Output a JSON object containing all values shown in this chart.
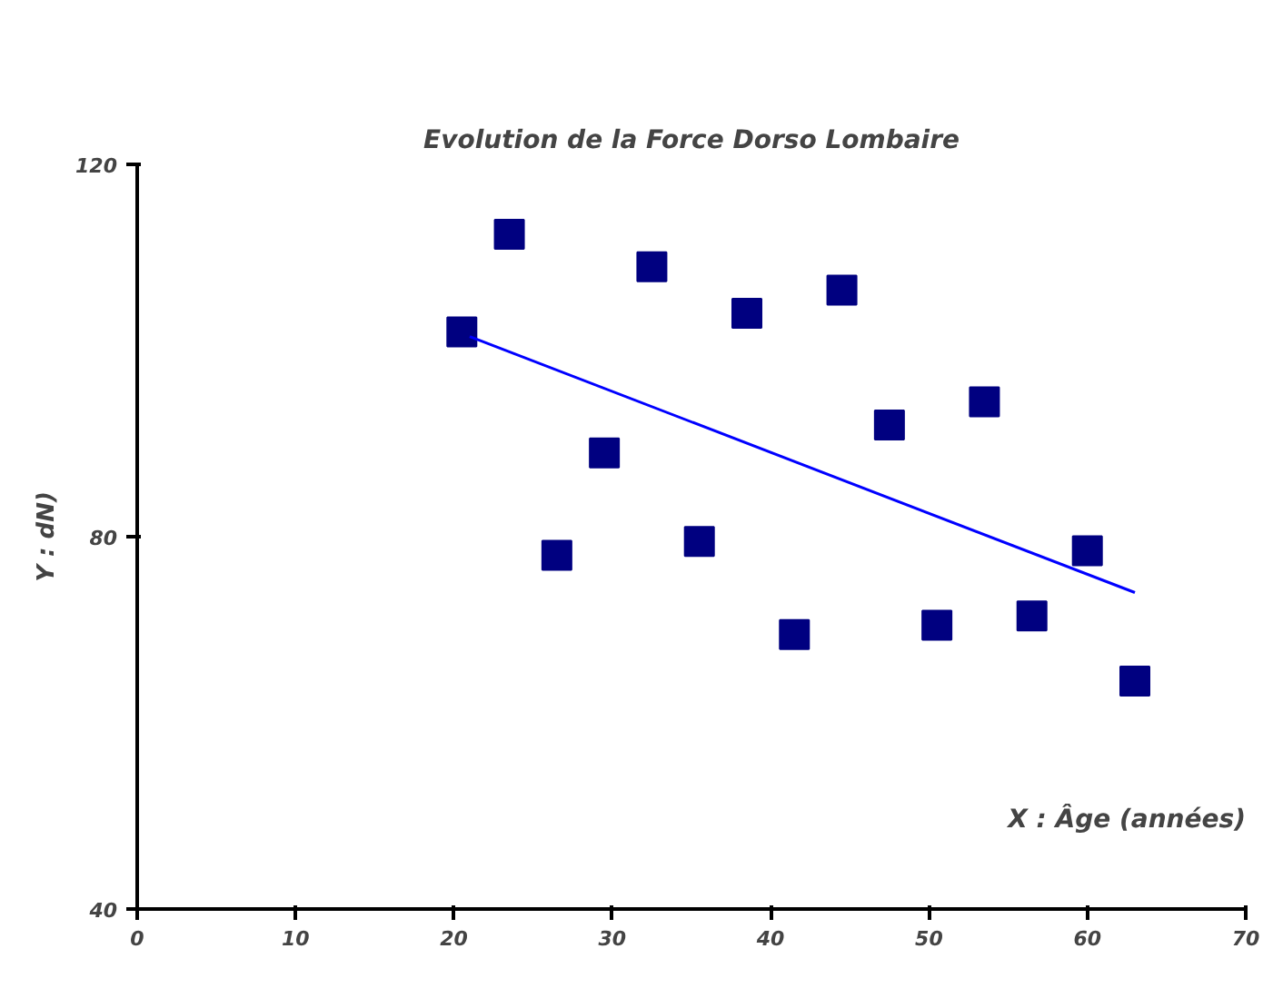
{
  "chart_data": {
    "type": "scatter",
    "title": "Evolution de la Force Dorso Lombaire",
    "xlabel": "X : Âge (années)",
    "ylabel": "Y : dN)",
    "xlim": [
      0,
      70
    ],
    "xticks": [
      0,
      10,
      20,
      30,
      40,
      50,
      60,
      70
    ],
    "ylim": [
      40,
      120
    ],
    "yticks": [
      40,
      80,
      120
    ],
    "grid": false,
    "marker": "square",
    "series": [
      {
        "color": "#000080",
        "x": [
          20.5,
          23.5,
          26.5,
          29.5,
          32.5,
          35.5,
          38.5,
          41.5,
          44.5,
          47.5,
          50.5,
          53.5,
          56.5,
          60,
          63
        ],
        "values": [
          102,
          112.5,
          78,
          89,
          109,
          79.5,
          104,
          69.5,
          106.5,
          92,
          70.5,
          94.5,
          71.5,
          78.5,
          64.5
        ]
      },
      {
        "type": "line",
        "marker": "none",
        "color": "#0000ff",
        "x": [
          21,
          63
        ],
        "values": [
          101.5,
          74
        ]
      }
    ]
  }
}
